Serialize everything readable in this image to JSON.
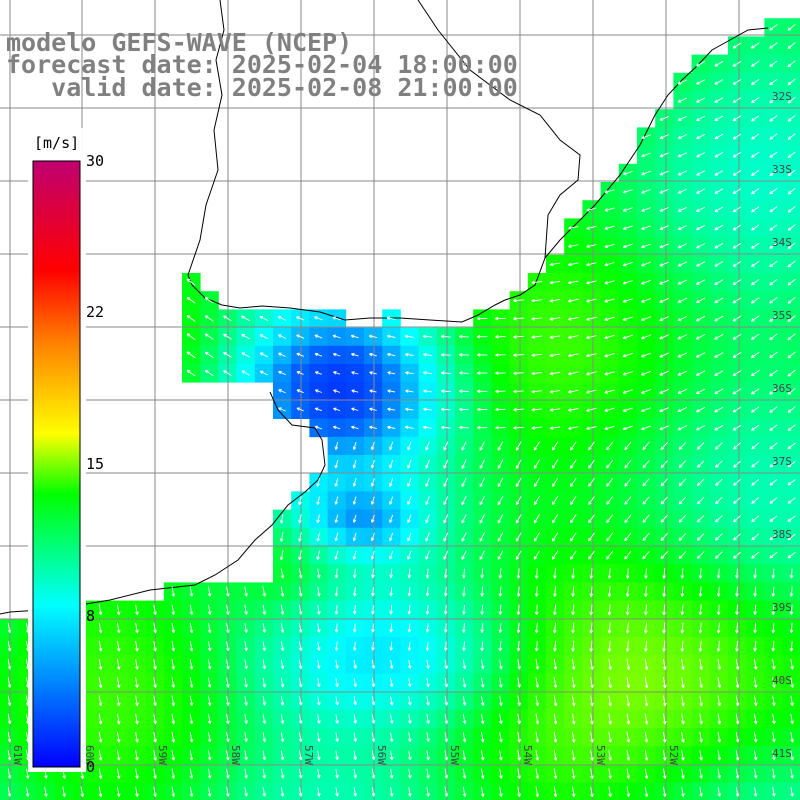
{
  "title": {
    "line1": "modelo GEFS-WAVE (NCEP)",
    "line2": "forecast date: 2025-02-04 18:00:00",
    "line3": "   valid date: 2025-02-08 21:00:00"
  },
  "colorbar": {
    "unit": "[m/s]",
    "ticks": [
      "30",
      "22",
      "15",
      "8",
      "0"
    ],
    "min": 0,
    "max": 30,
    "colors": [
      "#0000ff",
      "#00ffff",
      "#00ff00",
      "#ffff00",
      "#ff8000",
      "#ff0000",
      "#c00070"
    ]
  },
  "lat_labels": [
    "32S",
    "33S",
    "34S",
    "35S",
    "36S",
    "37S",
    "38S",
    "39S",
    "40S",
    "41S"
  ],
  "lon_labels": [
    "61W",
    "60W",
    "59W",
    "58W",
    "57W",
    "56W",
    "55W",
    "54W",
    "53W",
    "52W"
  ],
  "colors": {
    "land": "#ffffff",
    "grid": "#888888",
    "coast": "#000000",
    "arrow": "#ffffff",
    "title": "#808080"
  }
}
